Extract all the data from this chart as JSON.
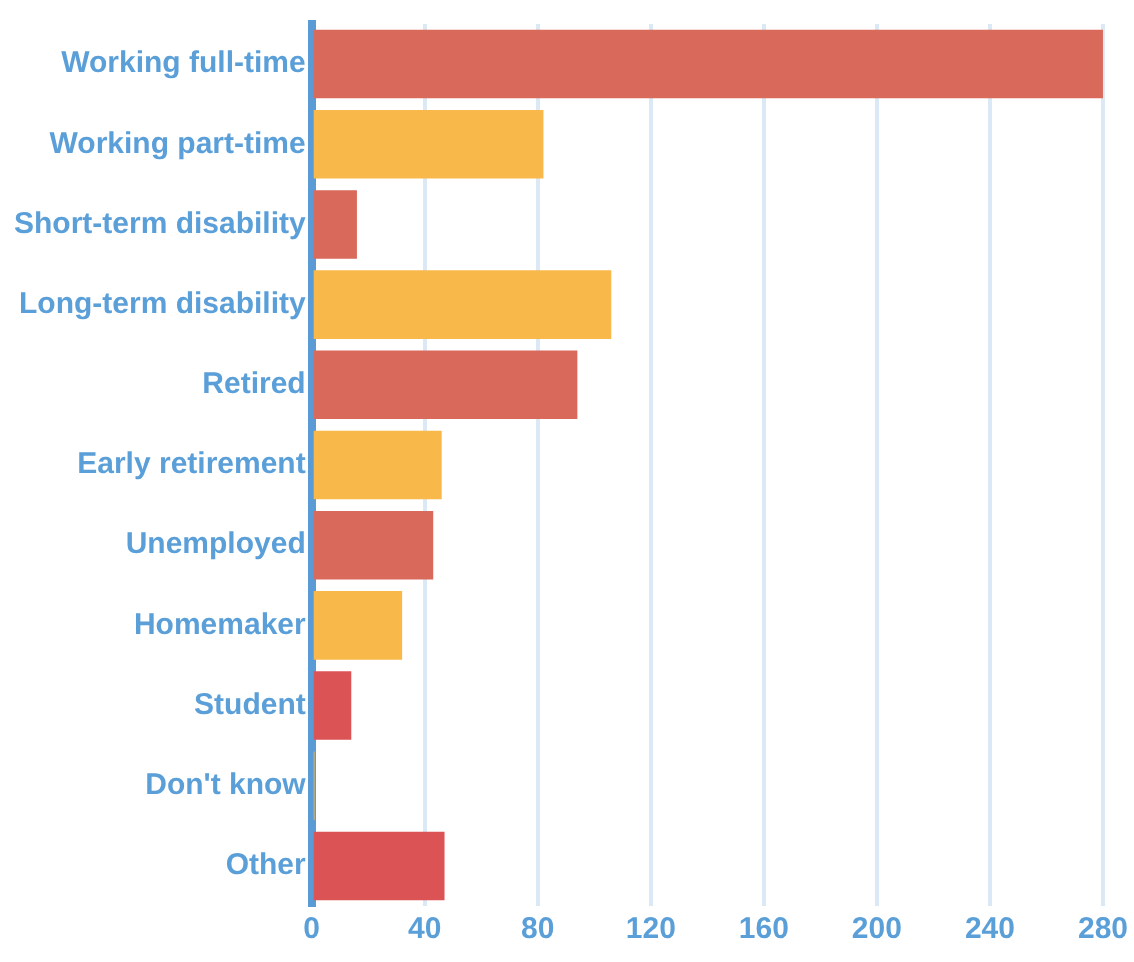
{
  "chart_data": {
    "type": "bar",
    "orientation": "horizontal",
    "categories": [
      "Working full-time",
      "Working part-time",
      "Short-term disability",
      "Long-term disability",
      "Retired",
      "Early retirement",
      "Unemployed",
      "Homemaker",
      "Student",
      "Don't know",
      "Other"
    ],
    "values": [
      280,
      82,
      16,
      106,
      94,
      46,
      43,
      32,
      14,
      1,
      47
    ],
    "colors": [
      "#d9695a",
      "#f8b94a",
      "#d9695a",
      "#f8b94a",
      "#d9695a",
      "#f8b94a",
      "#d9695a",
      "#f8b94a",
      "#dc5356",
      "#f8b94a",
      "#dc5356"
    ],
    "xlim": [
      0,
      280
    ],
    "xticks": [
      0,
      40,
      80,
      120,
      160,
      200,
      240,
      280
    ],
    "grid": "x"
  }
}
